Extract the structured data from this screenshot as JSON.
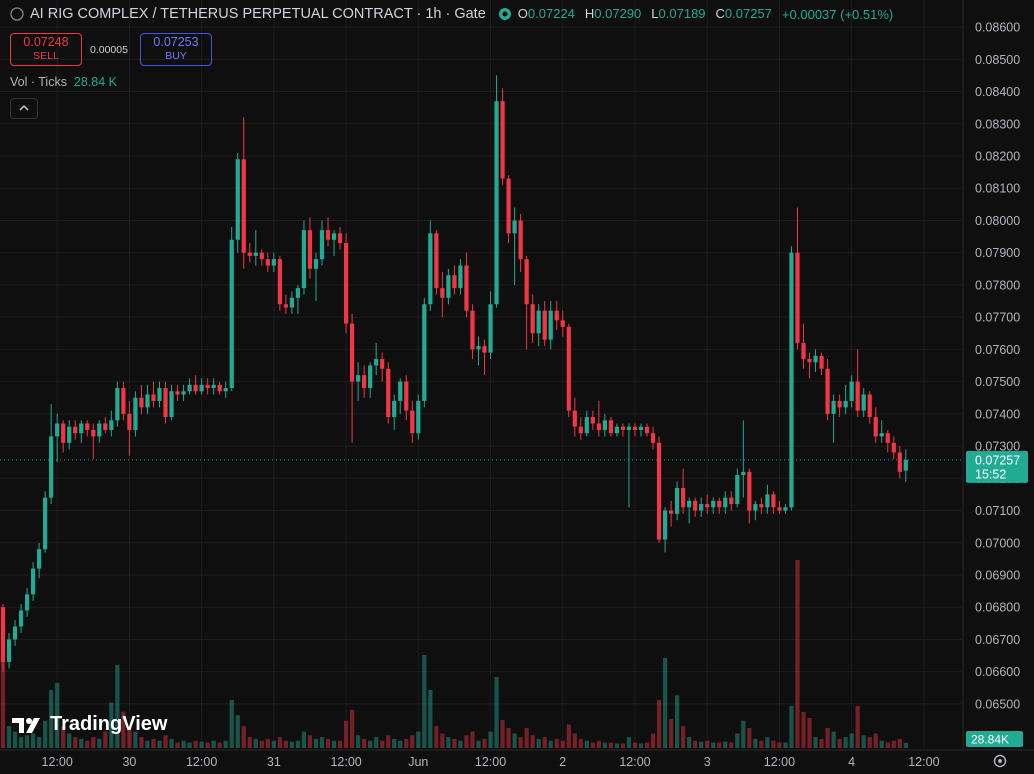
{
  "symbol_title": "AI RIG COMPLEX / TETHERUS PERPETUAL CONTRACT · 1h · Gate",
  "ohlc_legend": [
    {
      "label": "O",
      "value": "0.07224"
    },
    {
      "label": "H",
      "value": "0.07290"
    },
    {
      "label": "L",
      "value": "0.07189"
    },
    {
      "label": "C",
      "value": "0.07257"
    }
  ],
  "change": "+0.00037 (+0.51%)",
  "trade_panel": {
    "sell_price": "0.07248",
    "sell_label": "SELL",
    "spread": "0.00005",
    "buy_price": "0.07253",
    "buy_label": "BUY"
  },
  "volume_legend": {
    "name": "Vol · Ticks",
    "value": "28.84 K"
  },
  "watermark": "TradingView",
  "chart_data": {
    "type": "candlestick",
    "up_color": "#22ab94",
    "down_color": "#f23645",
    "grid": true,
    "open": [
      0.068,
      0.0663,
      0.067,
      0.0674,
      0.0679,
      0.0684,
      0.0692,
      0.0698,
      0.0714,
      0.0733,
      0.0737,
      0.0731,
      0.0736,
      0.0734,
      0.0737,
      0.0735,
      0.0733,
      0.0737,
      0.0735,
      0.0738,
      0.0748,
      0.074,
      0.0735,
      0.0745,
      0.0742,
      0.0746,
      0.0744,
      0.0748,
      0.0739,
      0.0747,
      0.0746,
      0.0747,
      0.0749,
      0.0747,
      0.0749,
      0.0748,
      0.0749,
      0.0747,
      0.0748,
      0.0794,
      0.0819,
      0.079,
      0.0789,
      0.079,
      0.0788,
      0.0786,
      0.0788,
      0.0774,
      0.0773,
      0.0776,
      0.0779,
      0.0797,
      0.0785,
      0.0788,
      0.0797,
      0.0794,
      0.0796,
      0.0793,
      0.0768,
      0.075,
      0.0752,
      0.0748,
      0.0755,
      0.0757,
      0.0754,
      0.0739,
      0.0744,
      0.075,
      0.0741,
      0.0734,
      0.0744,
      0.0774,
      0.0796,
      0.0779,
      0.0776,
      0.0783,
      0.0779,
      0.0786,
      0.0772,
      0.076,
      0.0761,
      0.0759,
      0.0774,
      0.0837,
      0.0813,
      0.0796,
      0.08,
      0.0788,
      0.0774,
      0.0765,
      0.0772,
      0.0763,
      0.0772,
      0.0769,
      0.0767,
      0.0741,
      0.0736,
      0.0734,
      0.0739,
      0.0737,
      0.0735,
      0.0738,
      0.0734,
      0.0736,
      0.0735,
      0.0736,
      0.0735,
      0.0736,
      0.0734,
      0.0731,
      0.0701,
      0.071,
      0.0709,
      0.0717,
      0.0711,
      0.0713,
      0.071,
      0.0712,
      0.0711,
      0.0713,
      0.0711,
      0.0714,
      0.0712,
      0.0721,
      0.0722,
      0.071,
      0.0712,
      0.0711,
      0.0715,
      0.0711,
      0.071,
      0.0711,
      0.079,
      0.0762,
      0.0757,
      0.0756,
      0.0758,
      0.0754,
      0.074,
      0.0744,
      0.0742,
      0.0744,
      0.075,
      0.0741,
      0.0746,
      0.0739,
      0.0733,
      0.0734,
      0.0731,
      0.0728,
      0.07224
    ],
    "high": [
      0.0681,
      0.0672,
      0.0676,
      0.0681,
      0.0686,
      0.0694,
      0.07,
      0.0716,
      0.0743,
      0.074,
      0.0738,
      0.0738,
      0.0738,
      0.0738,
      0.0738,
      0.0737,
      0.0738,
      0.0739,
      0.0741,
      0.075,
      0.075,
      0.0744,
      0.0747,
      0.0749,
      0.0749,
      0.075,
      0.075,
      0.075,
      0.0749,
      0.0749,
      0.0749,
      0.0751,
      0.0752,
      0.0751,
      0.0751,
      0.0751,
      0.075,
      0.075,
      0.0798,
      0.0821,
      0.0832,
      0.0793,
      0.0797,
      0.0791,
      0.079,
      0.079,
      0.0789,
      0.0777,
      0.0778,
      0.078,
      0.08,
      0.0801,
      0.079,
      0.08,
      0.0801,
      0.0797,
      0.0798,
      0.0796,
      0.0771,
      0.0756,
      0.0755,
      0.0756,
      0.0762,
      0.0759,
      0.0756,
      0.0746,
      0.0751,
      0.0752,
      0.0744,
      0.0746,
      0.0776,
      0.08,
      0.0797,
      0.0784,
      0.0785,
      0.0786,
      0.0788,
      0.079,
      0.0774,
      0.0764,
      0.0763,
      0.0778,
      0.0845,
      0.0841,
      0.0814,
      0.0804,
      0.0802,
      0.0789,
      0.0777,
      0.0774,
      0.0775,
      0.0775,
      0.0775,
      0.0772,
      0.0768,
      0.0745,
      0.0739,
      0.0741,
      0.0741,
      0.0744,
      0.074,
      0.0739,
      0.0737,
      0.0737,
      0.0737,
      0.0737,
      0.0737,
      0.0737,
      0.0736,
      0.0733,
      0.0711,
      0.0713,
      0.0719,
      0.0723,
      0.0714,
      0.0714,
      0.0714,
      0.0715,
      0.0714,
      0.0714,
      0.0716,
      0.0716,
      0.0723,
      0.0738,
      0.0723,
      0.0713,
      0.0714,
      0.0718,
      0.0716,
      0.0713,
      0.0712,
      0.0792,
      0.0804,
      0.0768,
      0.0759,
      0.076,
      0.0759,
      0.0757,
      0.0746,
      0.0746,
      0.0749,
      0.0752,
      0.076,
      0.0748,
      0.0747,
      0.0742,
      0.0738,
      0.0735,
      0.0733,
      0.073,
      0.0729
    ],
    "low": [
      0.066,
      0.0661,
      0.0668,
      0.0672,
      0.0677,
      0.0682,
      0.0689,
      0.0697,
      0.0712,
      0.0725,
      0.0728,
      0.0729,
      0.0732,
      0.0731,
      0.0733,
      0.0726,
      0.0731,
      0.0734,
      0.0733,
      0.0736,
      0.0738,
      0.0727,
      0.0733,
      0.074,
      0.074,
      0.0742,
      0.0742,
      0.0737,
      0.0738,
      0.0744,
      0.0744,
      0.0746,
      0.0746,
      0.0746,
      0.0746,
      0.0746,
      0.0746,
      0.0745,
      0.0747,
      0.079,
      0.0785,
      0.0787,
      0.0786,
      0.0786,
      0.0784,
      0.0784,
      0.0772,
      0.0771,
      0.0771,
      0.0771,
      0.0777,
      0.0782,
      0.0775,
      0.0786,
      0.0792,
      0.0789,
      0.0791,
      0.0765,
      0.0731,
      0.0744,
      0.0745,
      0.0745,
      0.0752,
      0.075,
      0.0737,
      0.0735,
      0.074,
      0.0738,
      0.0731,
      0.0732,
      0.0742,
      0.0772,
      0.0777,
      0.077,
      0.0774,
      0.0777,
      0.0777,
      0.077,
      0.0757,
      0.0755,
      0.0752,
      0.0757,
      0.0773,
      0.0811,
      0.0793,
      0.078,
      0.0784,
      0.076,
      0.0762,
      0.0761,
      0.0761,
      0.076,
      0.0766,
      0.0764,
      0.0739,
      0.0733,
      0.0732,
      0.0733,
      0.0735,
      0.0733,
      0.0733,
      0.0733,
      0.0733,
      0.0733,
      0.0711,
      0.0733,
      0.0733,
      0.0733,
      0.0729,
      0.07,
      0.0697,
      0.0705,
      0.0707,
      0.0709,
      0.0706,
      0.0708,
      0.0708,
      0.0709,
      0.0709,
      0.0709,
      0.0709,
      0.071,
      0.0711,
      0.0714,
      0.0706,
      0.0707,
      0.0709,
      0.0709,
      0.0709,
      0.0709,
      0.0709,
      0.071,
      0.076,
      0.0754,
      0.0751,
      0.0753,
      0.0752,
      0.0738,
      0.0731,
      0.0739,
      0.074,
      0.0742,
      0.0739,
      0.0739,
      0.0737,
      0.0731,
      0.0731,
      0.0728,
      0.0726,
      0.072,
      0.07189
    ],
    "close": [
      0.0663,
      0.067,
      0.0674,
      0.0679,
      0.0684,
      0.0692,
      0.0698,
      0.0714,
      0.0733,
      0.0737,
      0.0731,
      0.0736,
      0.0734,
      0.0737,
      0.0735,
      0.0733,
      0.0737,
      0.0735,
      0.0738,
      0.0748,
      0.074,
      0.0735,
      0.0745,
      0.0742,
      0.0746,
      0.0744,
      0.0748,
      0.0739,
      0.0747,
      0.0746,
      0.0747,
      0.0749,
      0.0747,
      0.0749,
      0.0748,
      0.0749,
      0.0747,
      0.0748,
      0.0794,
      0.0819,
      0.079,
      0.0789,
      0.079,
      0.0788,
      0.0786,
      0.0788,
      0.0774,
      0.0773,
      0.0776,
      0.0779,
      0.0797,
      0.0785,
      0.0788,
      0.0797,
      0.0794,
      0.0796,
      0.0793,
      0.0768,
      0.075,
      0.0752,
      0.0748,
      0.0755,
      0.0757,
      0.0754,
      0.0739,
      0.0744,
      0.075,
      0.0741,
      0.0734,
      0.0744,
      0.0774,
      0.0796,
      0.0779,
      0.0776,
      0.0783,
      0.0779,
      0.0786,
      0.0772,
      0.076,
      0.0761,
      0.0759,
      0.0774,
      0.0837,
      0.0813,
      0.0796,
      0.08,
      0.0788,
      0.0774,
      0.0765,
      0.0772,
      0.0763,
      0.0772,
      0.0769,
      0.0767,
      0.0741,
      0.0736,
      0.0734,
      0.0739,
      0.0737,
      0.0735,
      0.0738,
      0.0734,
      0.0736,
      0.0735,
      0.0736,
      0.0735,
      0.0736,
      0.0734,
      0.0731,
      0.0701,
      0.071,
      0.0709,
      0.0717,
      0.0711,
      0.0713,
      0.071,
      0.0712,
      0.0711,
      0.0713,
      0.0711,
      0.0714,
      0.0712,
      0.0721,
      0.0722,
      0.071,
      0.0712,
      0.0711,
      0.0715,
      0.0711,
      0.071,
      0.0711,
      0.079,
      0.0762,
      0.0757,
      0.0756,
      0.0758,
      0.0754,
      0.074,
      0.0744,
      0.0742,
      0.0744,
      0.075,
      0.0741,
      0.0746,
      0.0739,
      0.0733,
      0.0734,
      0.0731,
      0.0728,
      0.0722,
      0.07257
    ],
    "volume": [
      594,
      120,
      90,
      60,
      70,
      80,
      60,
      150,
      319,
      358,
      120,
      80,
      60,
      50,
      40,
      60,
      50,
      90,
      250,
      457,
      200,
      110,
      90,
      60,
      40,
      50,
      40,
      70,
      50,
      30,
      40,
      30,
      40,
      35,
      30,
      40,
      30,
      40,
      264,
      180,
      120,
      60,
      50,
      40,
      50,
      40,
      60,
      40,
      35,
      40,
      90,
      70,
      50,
      60,
      50,
      40,
      40,
      150,
      209,
      70,
      50,
      40,
      60,
      40,
      70,
      50,
      40,
      50,
      70,
      90,
      512,
      319,
      120,
      80,
      60,
      50,
      40,
      70,
      90,
      40,
      50,
      90,
      390,
      154,
      110,
      80,
      60,
      110,
      70,
      50,
      60,
      40,
      50,
      40,
      130,
      80,
      50,
      40,
      30,
      40,
      30,
      30,
      25,
      25,
      60,
      30,
      25,
      30,
      80,
      264,
      495,
      160,
      290,
      120,
      60,
      40,
      35,
      40,
      30,
      30,
      35,
      30,
      80,
      150,
      110,
      50,
      40,
      60,
      40,
      30,
      30,
      231,
      1034,
      198,
      165,
      60,
      50,
      110,
      90,
      50,
      60,
      80,
      231,
      70,
      60,
      80,
      40,
      30,
      40,
      50,
      28.84
    ],
    "volume_ylim": [
      0,
      1100
    ],
    "ylim": [
      0.06357,
      0.08684
    ],
    "yticks": [
      {
        "value": 0.065,
        "label": "0.06500"
      },
      {
        "value": 0.066,
        "label": "0.06600"
      },
      {
        "value": 0.067,
        "label": "0.06700"
      },
      {
        "value": 0.068,
        "label": "0.06800"
      },
      {
        "value": 0.069,
        "label": "0.06900"
      },
      {
        "value": 0.07,
        "label": "0.07000"
      },
      {
        "value": 0.071,
        "label": "0.07100"
      },
      {
        "value": 0.072,
        "label": "0.07200"
      },
      {
        "value": 0.073,
        "label": "0.07300"
      },
      {
        "value": 0.074,
        "label": "0.07400"
      },
      {
        "value": 0.075,
        "label": "0.07500"
      },
      {
        "value": 0.076,
        "label": "0.07600"
      },
      {
        "value": 0.077,
        "label": "0.07700"
      },
      {
        "value": 0.078,
        "label": "0.07800"
      },
      {
        "value": 0.079,
        "label": "0.07900"
      },
      {
        "value": 0.08,
        "label": "0.08000"
      },
      {
        "value": 0.081,
        "label": "0.08100"
      },
      {
        "value": 0.082,
        "label": "0.08200"
      },
      {
        "value": 0.083,
        "label": "0.08300"
      },
      {
        "value": 0.084,
        "label": "0.08400"
      },
      {
        "value": 0.085,
        "label": "0.08500"
      },
      {
        "value": 0.086,
        "label": "0.08600"
      }
    ],
    "xlim": [
      -0.5,
      159.5
    ],
    "xticks": [
      {
        "value": 9,
        "label": "12:00"
      },
      {
        "value": 21,
        "label": "30"
      },
      {
        "value": 33,
        "label": "12:00"
      },
      {
        "value": 45,
        "label": "31"
      },
      {
        "value": 57,
        "label": "12:00"
      },
      {
        "value": 69,
        "label": "Jun"
      },
      {
        "value": 81,
        "label": "12:00"
      },
      {
        "value": 93,
        "label": "2"
      },
      {
        "value": 105,
        "label": "12:00"
      },
      {
        "value": 117,
        "label": "3"
      },
      {
        "value": 129,
        "label": "12:00"
      },
      {
        "value": 141,
        "label": "4"
      },
      {
        "value": 153,
        "label": "12:00"
      }
    ],
    "last_price": {
      "value": 0.07257,
      "label": "0.07257"
    },
    "countdown": "15:52",
    "volume_tag": "28.84K"
  }
}
